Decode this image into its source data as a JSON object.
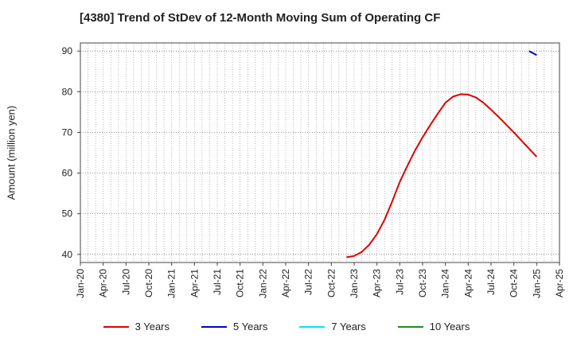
{
  "chart_data": {
    "type": "line",
    "title": "[4380]  Trend of StDev of 12-Month Moving Sum of Operating CF",
    "ylabel": "Amount (million yen)",
    "xlabel": "",
    "ylim": [
      38,
      92
    ],
    "yticks": [
      40,
      50,
      60,
      70,
      80,
      90
    ],
    "x_tick_labels": [
      "Jan-20",
      "Apr-20",
      "Jul-20",
      "Oct-20",
      "Jan-21",
      "Apr-21",
      "Jul-21",
      "Oct-21",
      "Jan-22",
      "Apr-22",
      "Jul-22",
      "Oct-22",
      "Jan-23",
      "Apr-23",
      "Jul-23",
      "Oct-23",
      "Jan-24",
      "Apr-24",
      "Jul-24",
      "Oct-24",
      "Jan-25",
      "Apr-25"
    ],
    "grid": true,
    "legend_position": "bottom",
    "series": [
      {
        "name": "3 Years",
        "color": "#dd0000",
        "points": [
          [
            "Dec-22",
            39.3
          ],
          [
            "Jan-23",
            39.6
          ],
          [
            "Feb-23",
            40.6
          ],
          [
            "Mar-23",
            42.4
          ],
          [
            "Apr-23",
            45.0
          ],
          [
            "May-23",
            48.5
          ],
          [
            "Jun-23",
            53.0
          ],
          [
            "Jul-23",
            57.8
          ],
          [
            "Aug-23",
            61.8
          ],
          [
            "Sep-23",
            65.5
          ],
          [
            "Oct-23",
            68.8
          ],
          [
            "Nov-23",
            71.8
          ],
          [
            "Dec-23",
            74.6
          ],
          [
            "Jan-24",
            77.3
          ],
          [
            "Feb-24",
            78.8
          ],
          [
            "Mar-24",
            79.4
          ],
          [
            "Apr-24",
            79.3
          ],
          [
            "May-24",
            78.6
          ],
          [
            "Jun-24",
            77.3
          ],
          [
            "Jul-24",
            75.6
          ],
          [
            "Aug-24",
            73.8
          ],
          [
            "Sep-24",
            71.9
          ],
          [
            "Oct-24",
            70.0
          ],
          [
            "Nov-24",
            68.0
          ],
          [
            "Dec-24",
            66.0
          ],
          [
            "Jan-25",
            64.0
          ]
        ]
      },
      {
        "name": "5 Years",
        "color": "#0000cc",
        "points": [
          [
            "Dec-24",
            90.0
          ],
          [
            "Jan-25",
            89.0
          ]
        ]
      },
      {
        "name": "7 Years",
        "color": "#00e5ee",
        "points": []
      },
      {
        "name": "10 Years",
        "color": "#228b22",
        "points": []
      }
    ]
  }
}
